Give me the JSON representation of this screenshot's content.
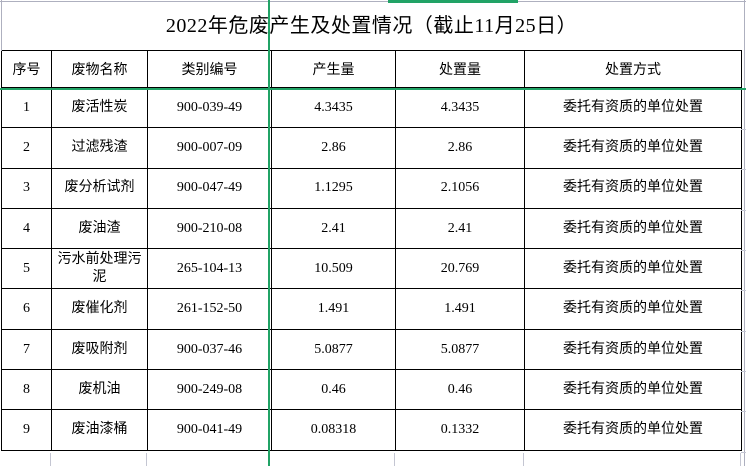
{
  "title": "2022年危废产生及处置情况（截止11月25日）",
  "table": {
    "columns": [
      "序号",
      "废物名称",
      "类别编号",
      "产生量",
      "处置量",
      "处置方式"
    ],
    "rows": [
      {
        "seq": "1",
        "name": "废活性炭",
        "code": "900-039-49",
        "produced": "4.3435",
        "disposed": "4.3435",
        "method": "委托有资质的单位处置"
      },
      {
        "seq": "2",
        "name": "过滤残渣",
        "code": "900-007-09",
        "produced": "2.86",
        "disposed": "2.86",
        "method": "委托有资质的单位处置"
      },
      {
        "seq": "3",
        "name": "废分析试剂",
        "code": "900-047-49",
        "produced": "1.1295",
        "disposed": "2.1056",
        "method": "委托有资质的单位处置"
      },
      {
        "seq": "4",
        "name": "废油渣",
        "code": "900-210-08",
        "produced": "2.41",
        "disposed": "2.41",
        "method": "委托有资质的单位处置"
      },
      {
        "seq": "5",
        "name": "污水前处理污泥",
        "code": "265-104-13",
        "produced": "10.509",
        "disposed": "20.769",
        "method": "委托有资质的单位处置"
      },
      {
        "seq": "6",
        "name": "废催化剂",
        "code": "261-152-50",
        "produced": "1.491",
        "disposed": "1.491",
        "method": "委托有资质的单位处置"
      },
      {
        "seq": "7",
        "name": "废吸附剂",
        "code": "900-037-46",
        "produced": "5.0877",
        "disposed": "5.0877",
        "method": "委托有资质的单位处置"
      },
      {
        "seq": "8",
        "name": "废机油",
        "code": "900-249-08",
        "produced": "0.46",
        "disposed": "0.46",
        "method": "委托有资质的单位处置"
      },
      {
        "seq": "9",
        "name": "废油漆桶",
        "code": "900-041-49",
        "produced": "0.08318",
        "disposed": "0.1332",
        "method": "委托有资质的单位处置"
      }
    ]
  },
  "colors": {
    "gridline_green": "#21a366",
    "edge_gray": "#aeb0bf",
    "border_black": "#000000",
    "background": "#ffffff"
  }
}
